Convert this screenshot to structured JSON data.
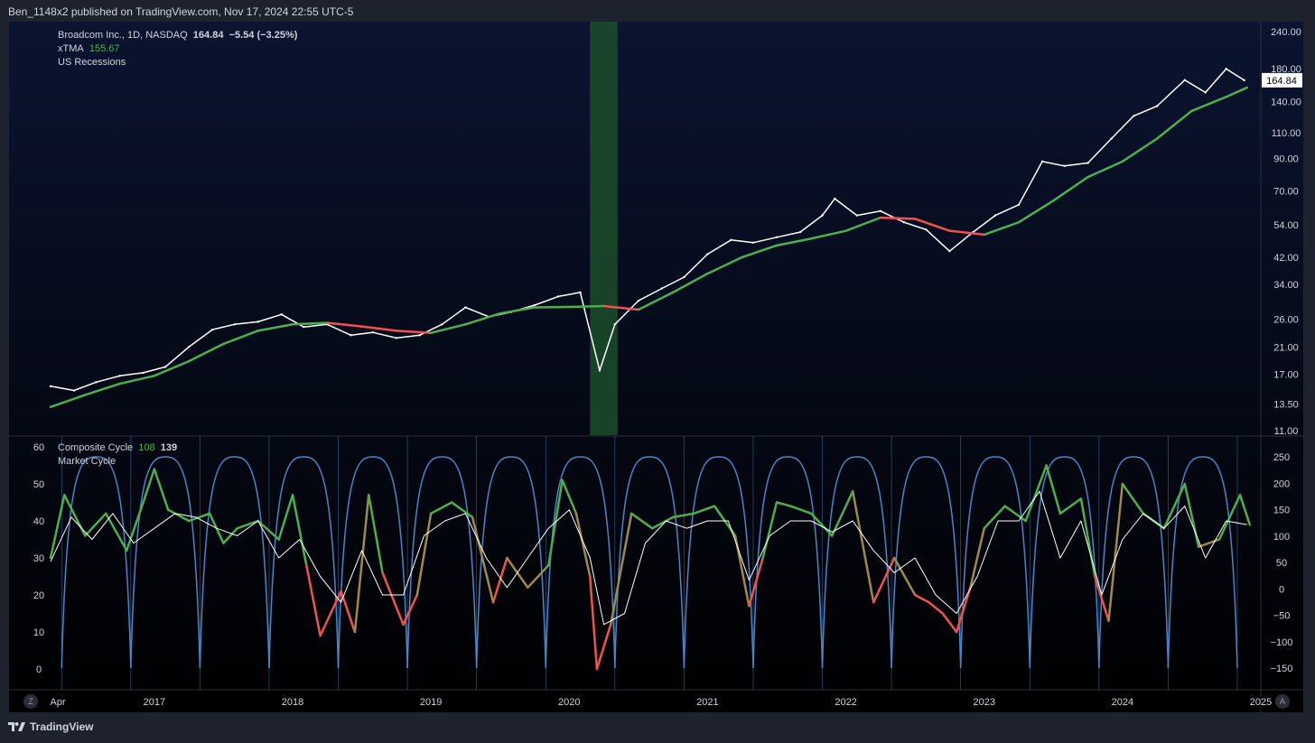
{
  "header": {
    "published": "Ben_1148x2 published on TradingView.com, Nov 17, 2024 22:55 UTC-5"
  },
  "footer": {
    "brand": "TradingView"
  },
  "buttons": {
    "left": "Z",
    "right": "A"
  },
  "colors": {
    "price": "#ffffff",
    "ma_up": "#4caf50",
    "ma_down": "#f05252",
    "recession": "#1b4d2a",
    "cycle_phase": "#4a86c8",
    "market_cycle": "#ffffff"
  },
  "main_legend": {
    "symbol": "Broadcom Inc., 1D, NASDAQ",
    "last": "164.84",
    "change": "−5.54 (−3.25%)",
    "indicator": "xTMA",
    "indicator_value": "155.67",
    "overlay": "US Recessions"
  },
  "sub_legend": {
    "indicator": "Composite Cycle",
    "value1": "108",
    "value2": "139",
    "second": "Market Cycle"
  },
  "chart_data": [
    {
      "type": "line",
      "scale": "log",
      "x_ticks": [
        "Apr",
        "2017",
        "2018",
        "2019",
        "2020",
        "2021",
        "2022",
        "2023",
        "2024",
        "2025"
      ],
      "y_ticks": [
        "240.00",
        "180.00",
        "140.00",
        "110.00",
        "90.00",
        "70.00",
        "54.00",
        "42.00",
        "34.00",
        "26.00",
        "21.00",
        "17.00",
        "13.50",
        "11.00"
      ],
      "price_label": "164.84",
      "recession": {
        "start": 2020.15,
        "end": 2020.35
      },
      "series": [
        {
          "name": "Broadcom Inc.",
          "x": [
            2016.25,
            2016.42,
            2016.58,
            2016.75,
            2016.92,
            2017.08,
            2017.25,
            2017.42,
            2017.58,
            2017.75,
            2017.92,
            2018.08,
            2018.25,
            2018.42,
            2018.58,
            2018.75,
            2018.92,
            2019.08,
            2019.25,
            2019.42,
            2019.58,
            2019.75,
            2019.92,
            2020.08,
            2020.22,
            2020.33,
            2020.5,
            2020.67,
            2020.83,
            2021.0,
            2021.17,
            2021.33,
            2021.5,
            2021.67,
            2021.83,
            2021.92,
            2022.08,
            2022.25,
            2022.42,
            2022.58,
            2022.75,
            2022.92,
            2023.08,
            2023.25,
            2023.42,
            2023.58,
            2023.75,
            2023.92,
            2024.08,
            2024.25,
            2024.45,
            2024.6,
            2024.75,
            2024.88
          ],
          "y": [
            15.5,
            15.0,
            16.0,
            16.8,
            17.2,
            18.0,
            21.0,
            24.0,
            25.0,
            25.5,
            27.0,
            24.5,
            25.0,
            23.0,
            23.5,
            22.5,
            23.0,
            25.0,
            28.5,
            26.5,
            27.5,
            29.0,
            31.0,
            32.0,
            17.5,
            25.0,
            30.0,
            33.0,
            36.0,
            43.0,
            48.0,
            47.0,
            49.0,
            51.0,
            58.0,
            66.0,
            58.0,
            60.0,
            55.0,
            52.0,
            44.0,
            51.0,
            58.0,
            63.0,
            88.0,
            85.0,
            87.0,
            105.0,
            125.0,
            135.0,
            165.0,
            150.0,
            180.0,
            164.84
          ]
        },
        {
          "name": "xTMA",
          "x": [
            2016.25,
            2016.5,
            2016.75,
            2017.0,
            2017.25,
            2017.5,
            2017.75,
            2018.0,
            2018.25,
            2018.5,
            2018.75,
            2019.0,
            2019.25,
            2019.5,
            2019.75,
            2020.0,
            2020.25,
            2020.5,
            2020.75,
            2021.0,
            2021.25,
            2021.5,
            2021.75,
            2022.0,
            2022.25,
            2022.5,
            2022.75,
            2023.0,
            2023.25,
            2023.5,
            2023.75,
            2024.0,
            2024.25,
            2024.5,
            2024.75,
            2024.9
          ],
          "y": [
            13.2,
            14.5,
            15.8,
            16.8,
            18.8,
            21.5,
            23.8,
            25.0,
            25.3,
            24.6,
            23.8,
            23.4,
            25.0,
            27.2,
            28.5,
            28.6,
            28.8,
            28.0,
            32.0,
            37.0,
            42.0,
            46.0,
            48.5,
            51.5,
            57.0,
            56.5,
            51.5,
            50.0,
            55.0,
            65.0,
            78.0,
            88.0,
            105.0,
            130.0,
            145.0,
            155.67
          ]
        }
      ]
    },
    {
      "type": "line",
      "x_ticks": [
        "Apr",
        "2017",
        "2018",
        "2019",
        "2020",
        "2021",
        "2022",
        "2023",
        "2024",
        "2025"
      ],
      "y_left_ticks": [
        "60",
        "50",
        "40",
        "30",
        "20",
        "10",
        "0"
      ],
      "y_right_ticks": [
        "250",
        "200",
        "150",
        "100",
        "50",
        "0",
        "−50",
        "−100",
        "−150"
      ],
      "series": [
        {
          "name": "Composite Cycle",
          "x": [
            2016.25,
            2016.35,
            2016.5,
            2016.65,
            2016.8,
            2016.92,
            2017.0,
            2017.1,
            2017.25,
            2017.4,
            2017.5,
            2017.6,
            2017.75,
            2017.9,
            2018.0,
            2018.1,
            2018.2,
            2018.35,
            2018.45,
            2018.55,
            2018.65,
            2018.8,
            2018.9,
            2019.0,
            2019.15,
            2019.3,
            2019.45,
            2019.55,
            2019.7,
            2019.85,
            2019.95,
            2020.05,
            2020.15,
            2020.2,
            2020.3,
            2020.45,
            2020.6,
            2020.75,
            2020.9,
            2021.05,
            2021.2,
            2021.3,
            2021.4,
            2021.5,
            2021.6,
            2021.75,
            2021.9,
            2022.05,
            2022.2,
            2022.35,
            2022.5,
            2022.6,
            2022.7,
            2022.8,
            2022.9,
            2023.0,
            2023.15,
            2023.3,
            2023.45,
            2023.55,
            2023.7,
            2023.8,
            2023.9,
            2024.0,
            2024.15,
            2024.3,
            2024.45,
            2024.55,
            2024.7,
            2024.85,
            2024.92
          ],
          "y": [
            30,
            47,
            36,
            42,
            32,
            45,
            54,
            43,
            40,
            42,
            34,
            38,
            40,
            35,
            47,
            28,
            9,
            21,
            10,
            47,
            26,
            12,
            20,
            42,
            45,
            41,
            18,
            30,
            22,
            28,
            51,
            42,
            25,
            0,
            12,
            42,
            38,
            41,
            42,
            44,
            36,
            17,
            30,
            45,
            44,
            42,
            36,
            48,
            18,
            30,
            20,
            18,
            15,
            10,
            22,
            38,
            44,
            40,
            55,
            42,
            46,
            25,
            13,
            50,
            42,
            38,
            50,
            33,
            35,
            47,
            39
          ]
        },
        {
          "name": "Market Cycle",
          "x": [
            2016.25,
            2016.4,
            2016.55,
            2016.7,
            2016.85,
            2017.0,
            2017.15,
            2017.3,
            2017.45,
            2017.6,
            2017.75,
            2017.9,
            2018.05,
            2018.2,
            2018.35,
            2018.5,
            2018.65,
            2018.8,
            2018.95,
            2019.1,
            2019.25,
            2019.4,
            2019.55,
            2019.7,
            2019.85,
            2020.0,
            2020.15,
            2020.25,
            2020.4,
            2020.55,
            2020.7,
            2020.85,
            2021.0,
            2021.15,
            2021.3,
            2021.45,
            2021.6,
            2021.75,
            2021.9,
            2022.05,
            2022.2,
            2022.35,
            2022.5,
            2022.65,
            2022.8,
            2022.95,
            2023.1,
            2023.25,
            2023.4,
            2023.55,
            2023.7,
            2023.85,
            2024.0,
            2024.15,
            2024.3,
            2024.45,
            2024.6,
            2024.75,
            2024.9
          ],
          "y": [
            29,
            41,
            35,
            42,
            34,
            38,
            42,
            41,
            38,
            36,
            40,
            30,
            35,
            25,
            18,
            32,
            20,
            20,
            36,
            40,
            42,
            30,
            22,
            30,
            38,
            43,
            30,
            12,
            15,
            34,
            40,
            38,
            40,
            40,
            24,
            36,
            40,
            40,
            37,
            40,
            32,
            26,
            30,
            20,
            15,
            25,
            40,
            40,
            48,
            30,
            40,
            20,
            35,
            42,
            38,
            44,
            30,
            40,
            39
          ]
        },
        {
          "name": "Cycle Phase",
          "x": [
            2016.33,
            2016.83,
            2017.33,
            2017.83,
            2018.33,
            2018.83,
            2019.33,
            2019.83,
            2020.33,
            2020.83,
            2021.33,
            2021.83,
            2022.33,
            2022.83,
            2023.33,
            2023.83,
            2024.33,
            2024.83
          ],
          "y": [
            -150,
            -150,
            -150,
            -150,
            -150,
            -150,
            -150,
            -150,
            -150,
            -150,
            -150,
            -150,
            -150,
            -150,
            -150,
            -150,
            -150,
            -150
          ]
        }
      ]
    }
  ]
}
